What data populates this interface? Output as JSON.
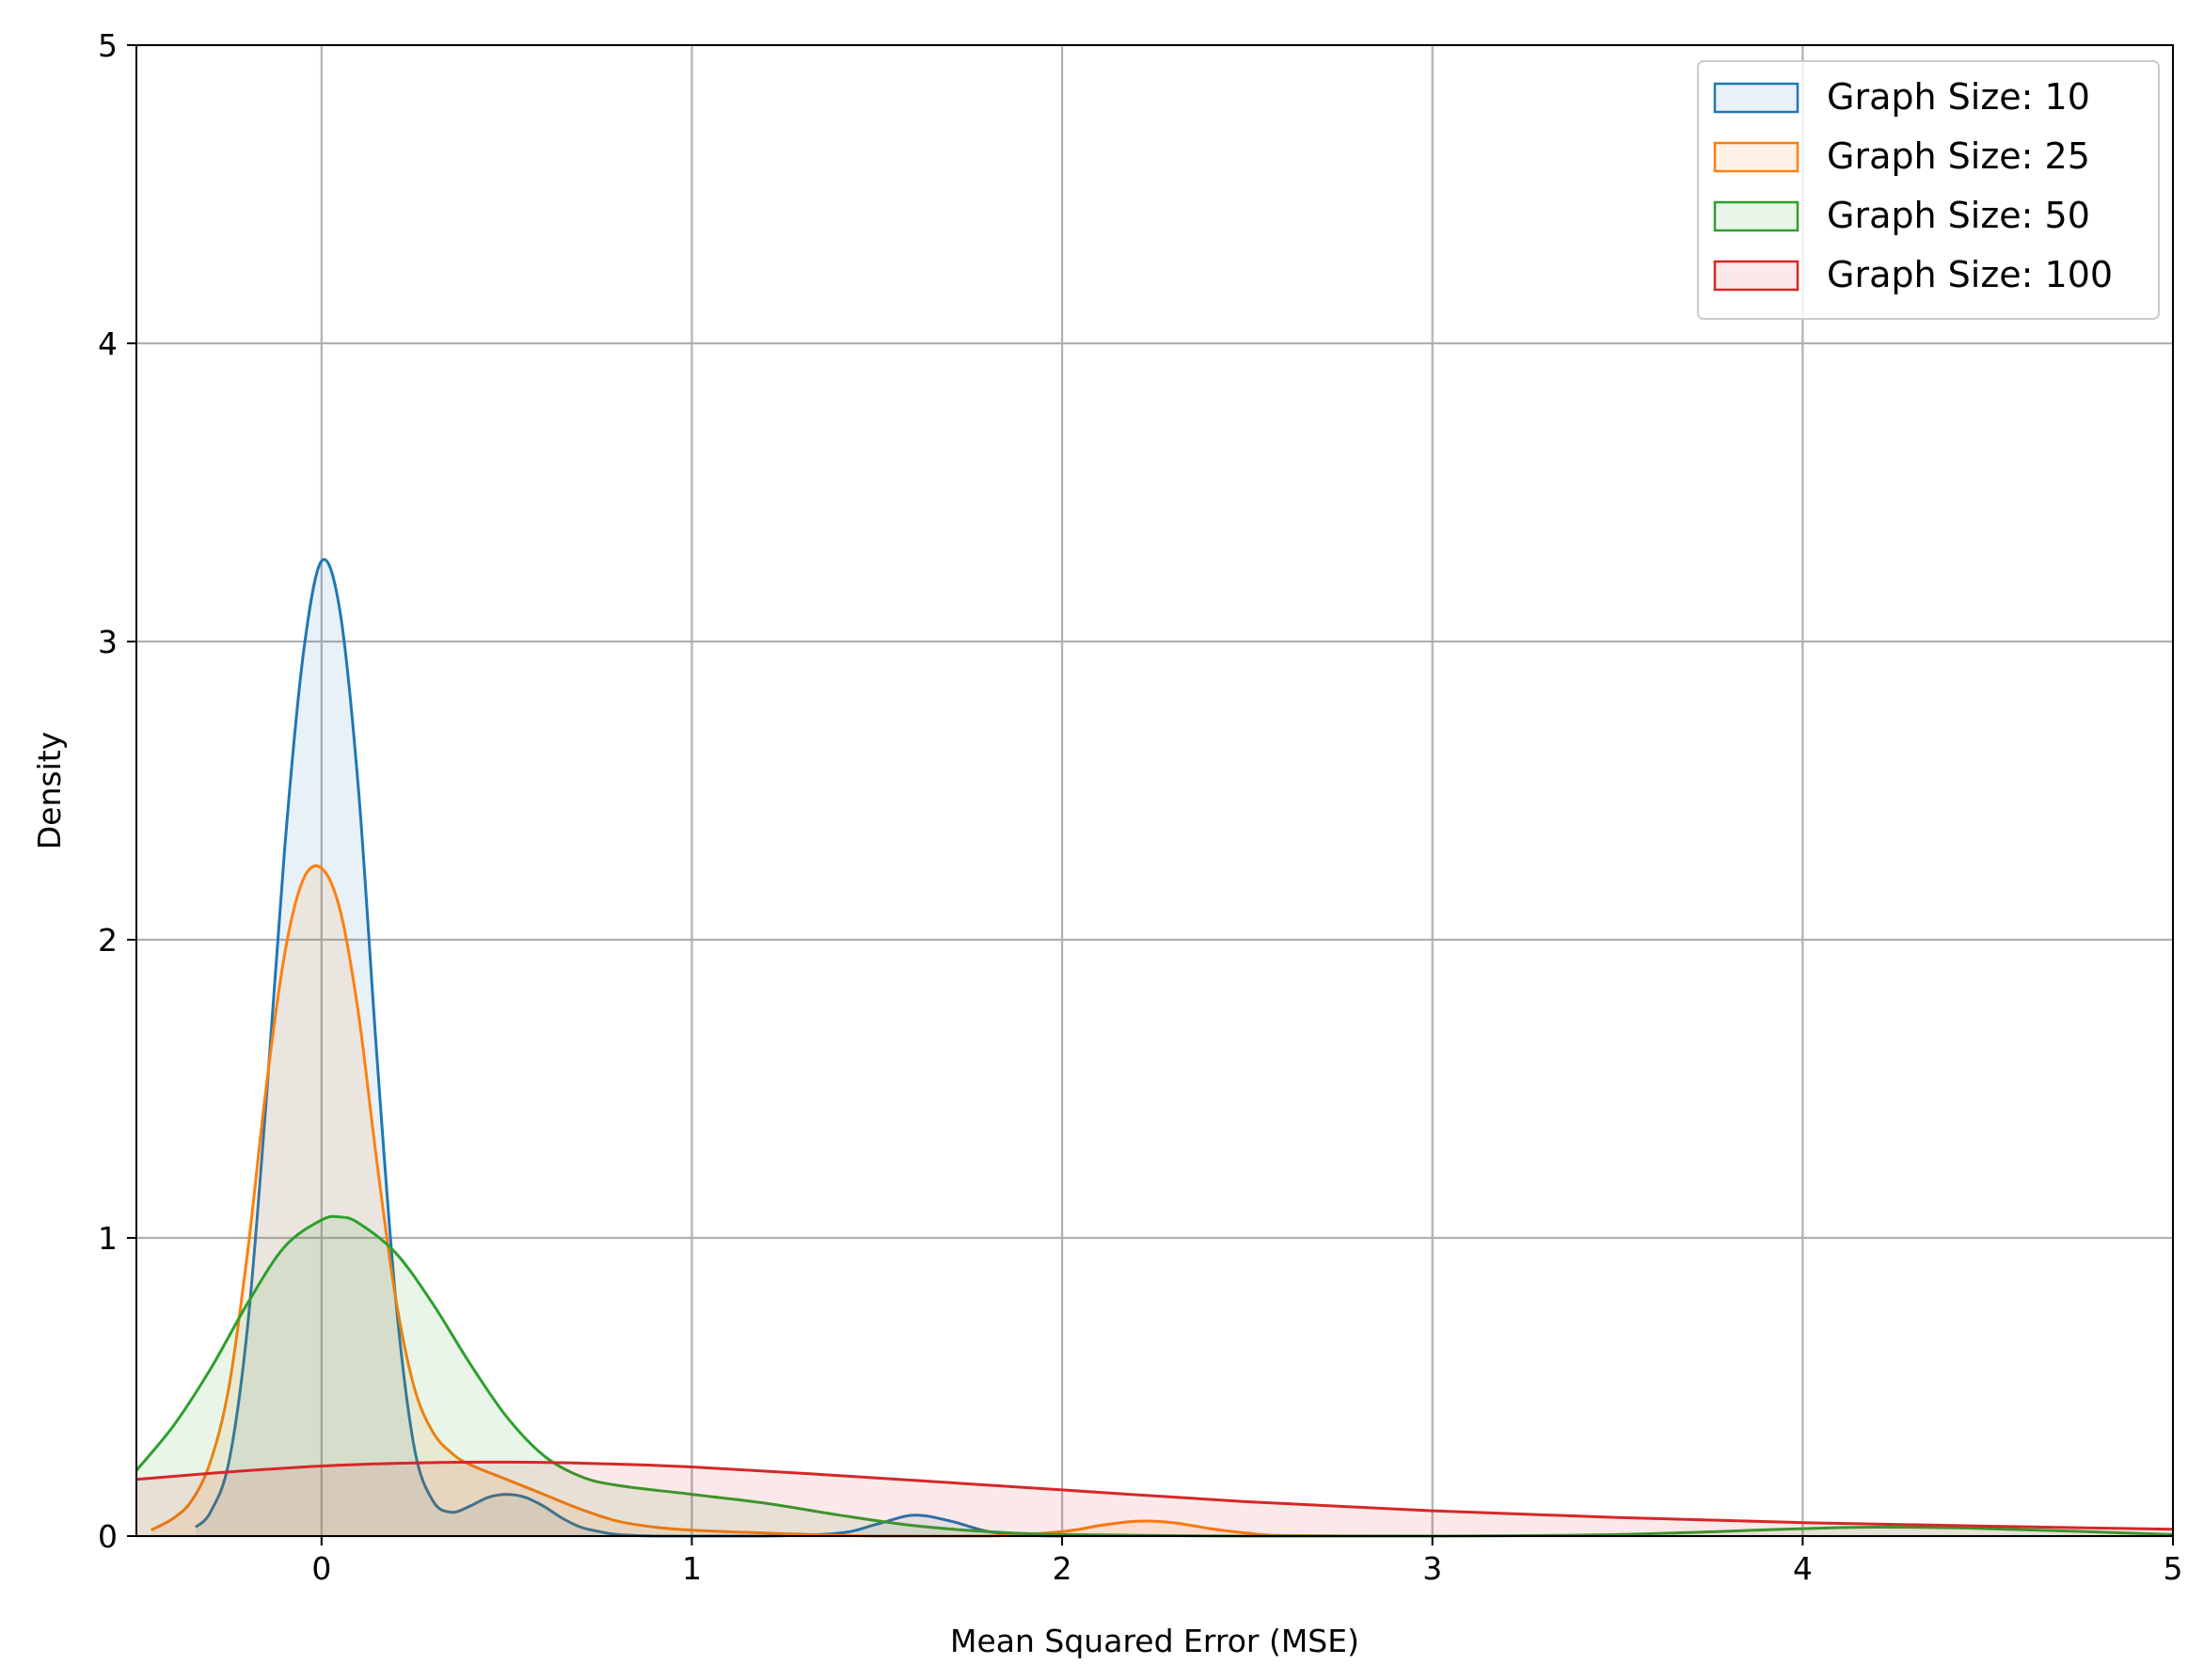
{
  "chart_data": {
    "type": "area",
    "title": "",
    "xlabel": "Mean Squared Error (MSE)",
    "ylabel": "Density",
    "xlim": [
      -0.5,
      5
    ],
    "ylim": [
      0,
      5
    ],
    "xticks": [
      0,
      1,
      2,
      3,
      4,
      5
    ],
    "yticks": [
      0,
      1,
      2,
      3,
      4,
      5
    ],
    "grid": true,
    "legend": "top-right",
    "series": [
      {
        "name": "Graph Size: 10",
        "color": "#1f77b4",
        "fill_opacity": 0.1,
        "x": [
          -0.34,
          -0.3,
          -0.25,
          -0.2,
          -0.15,
          -0.1,
          -0.05,
          0.0,
          0.05,
          0.1,
          0.15,
          0.2,
          0.25,
          0.3,
          0.35,
          0.4,
          0.45,
          0.5,
          0.55,
          0.6,
          0.65,
          0.7,
          0.75,
          0.8,
          0.9,
          1.0,
          1.2,
          1.4,
          1.5,
          1.6,
          1.7,
          1.8,
          1.9,
          2.0
        ],
        "y": [
          0.03,
          0.08,
          0.25,
          0.7,
          1.45,
          2.3,
          2.95,
          3.27,
          3.1,
          2.5,
          1.6,
          0.8,
          0.3,
          0.12,
          0.08,
          0.1,
          0.13,
          0.14,
          0.13,
          0.1,
          0.06,
          0.03,
          0.015,
          0.005,
          0.0,
          0.0,
          0.0,
          0.01,
          0.04,
          0.07,
          0.05,
          0.015,
          0.003,
          0.0
        ]
      },
      {
        "name": "Graph Size: 25",
        "color": "#ff7f0e",
        "fill_opacity": 0.1,
        "x": [
          -0.46,
          -0.4,
          -0.35,
          -0.3,
          -0.25,
          -0.2,
          -0.15,
          -0.1,
          -0.05,
          0.0,
          0.05,
          0.1,
          0.15,
          0.2,
          0.25,
          0.3,
          0.35,
          0.4,
          0.5,
          0.6,
          0.7,
          0.8,
          0.9,
          1.0,
          1.2,
          1.5,
          1.8,
          2.0,
          2.1,
          2.2,
          2.3,
          2.4,
          2.5,
          2.6,
          3.0
        ],
        "y": [
          0.02,
          0.06,
          0.12,
          0.25,
          0.5,
          0.95,
          1.5,
          1.95,
          2.2,
          2.24,
          2.1,
          1.75,
          1.25,
          0.8,
          0.5,
          0.35,
          0.28,
          0.24,
          0.19,
          0.14,
          0.09,
          0.05,
          0.03,
          0.02,
          0.01,
          0.0,
          0.0,
          0.015,
          0.035,
          0.05,
          0.045,
          0.025,
          0.01,
          0.002,
          0.0
        ]
      },
      {
        "name": "Graph Size: 50",
        "color": "#2ca02c",
        "fill_opacity": 0.1,
        "x": [
          -0.5,
          -0.4,
          -0.3,
          -0.2,
          -0.1,
          0.0,
          0.05,
          0.1,
          0.2,
          0.3,
          0.4,
          0.5,
          0.6,
          0.7,
          0.8,
          1.0,
          1.2,
          1.4,
          1.6,
          1.8,
          2.0,
          2.5,
          3.0,
          3.5,
          4.0,
          4.2,
          4.5,
          5.0
        ],
        "y": [
          0.22,
          0.37,
          0.56,
          0.78,
          0.97,
          1.06,
          1.07,
          1.05,
          0.95,
          0.78,
          0.58,
          0.4,
          0.27,
          0.2,
          0.17,
          0.14,
          0.11,
          0.07,
          0.035,
          0.015,
          0.005,
          0.0,
          0.0,
          0.005,
          0.025,
          0.03,
          0.025,
          0.005
        ]
      },
      {
        "name": "Graph Size: 100",
        "color": "#d62728",
        "fill_opacity": 0.1,
        "x": [
          -0.5,
          -0.25,
          0.0,
          0.25,
          0.5,
          0.75,
          1.0,
          1.5,
          2.0,
          2.5,
          3.0,
          3.5,
          4.0,
          4.5,
          5.0
        ],
        "y": [
          0.19,
          0.215,
          0.235,
          0.245,
          0.248,
          0.243,
          0.232,
          0.195,
          0.155,
          0.115,
          0.085,
          0.062,
          0.045,
          0.033,
          0.023
        ]
      }
    ]
  }
}
